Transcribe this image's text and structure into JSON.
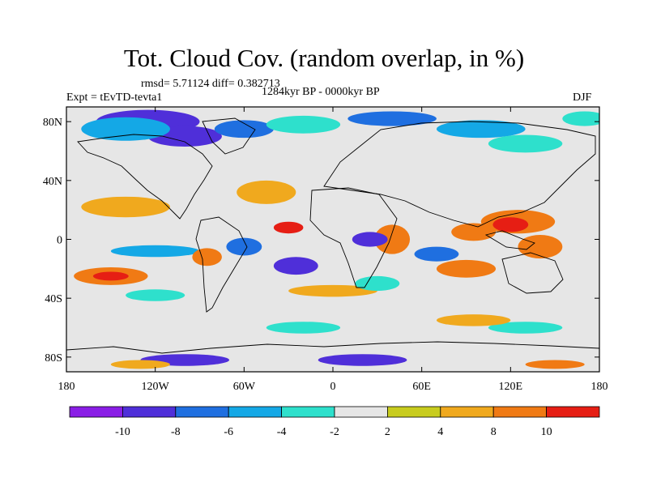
{
  "title": "Tot. Cloud Cov. (random overlap, in %)",
  "stats": "rmsd= 5.71124 diff= 0.382713",
  "experiment": "Expt = tEvTD-tevta1",
  "period": "1284kyr BP - 0000kyr BP",
  "season": "DJF",
  "chart_data": {
    "type": "heatmap",
    "x_axis": {
      "range": [
        -180,
        180
      ],
      "ticks": [
        -180,
        -120,
        -60,
        0,
        60,
        120,
        180
      ],
      "tick_labels": [
        "180",
        "120W",
        "60W",
        "0",
        "60E",
        "120E",
        "180"
      ]
    },
    "y_axis": {
      "range": [
        -90,
        90
      ],
      "ticks": [
        80,
        40,
        0,
        -40,
        -80
      ],
      "tick_labels": [
        "80N",
        "40N",
        "0",
        "40S",
        "80S"
      ]
    },
    "colorbar": {
      "levels": [
        -10,
        -8,
        -6,
        -4,
        -2,
        2,
        4,
        8,
        10
      ],
      "tick_labels": [
        "-10",
        "-8",
        "-6",
        "-4",
        "-2",
        "2",
        "4",
        "8",
        "10"
      ],
      "colors": [
        "#8a1ee6",
        "#4f2fd9",
        "#1f6fe0",
        "#14a8e6",
        "#2ee0cc",
        "#e6e6e6",
        "#c8cc1e",
        "#f0a91e",
        "#f07a14",
        "#e61e14"
      ]
    },
    "features": [
      {
        "label": "-10",
        "lon": -125,
        "lat": 80,
        "dlon": 35,
        "dlat": 8
      },
      {
        "label": "-10",
        "lon": -100,
        "lat": 70,
        "dlon": 25,
        "dlat": 7
      },
      {
        "label": "-8",
        "lon": -60,
        "lat": 75,
        "dlon": 20,
        "dlat": 6
      },
      {
        "label": "-6",
        "lon": -140,
        "lat": 75,
        "dlon": 30,
        "dlat": 8
      },
      {
        "label": "-4",
        "lon": -20,
        "lat": 78,
        "dlon": 25,
        "dlat": 6
      },
      {
        "label": "-8",
        "lon": 40,
        "lat": 82,
        "dlon": 30,
        "dlat": 5
      },
      {
        "label": "-6",
        "lon": 100,
        "lat": 75,
        "dlon": 30,
        "dlat": 6
      },
      {
        "label": "-4",
        "lon": 130,
        "lat": 65,
        "dlon": 25,
        "dlat": 6
      },
      {
        "label": "-4",
        "lon": 170,
        "lat": 82,
        "dlon": 15,
        "dlat": 5
      },
      {
        "label": "4",
        "lon": -140,
        "lat": 22,
        "dlon": 30,
        "dlat": 7
      },
      {
        "label": "4",
        "lon": -45,
        "lat": 32,
        "dlon": 20,
        "dlat": 8
      },
      {
        "label": "8",
        "lon": 125,
        "lat": 12,
        "dlon": 25,
        "dlat": 8
      },
      {
        "label": "10",
        "lon": 120,
        "lat": 10,
        "dlon": 12,
        "dlat": 5
      },
      {
        "label": "8",
        "lon": 95,
        "lat": 5,
        "dlon": 15,
        "dlat": 6
      },
      {
        "label": "8",
        "lon": 40,
        "lat": 0,
        "dlon": 12,
        "dlat": 10
      },
      {
        "label": "10",
        "lon": -30,
        "lat": 8,
        "dlon": 10,
        "dlat": 4
      },
      {
        "label": "-10",
        "lon": 25,
        "lat": 0,
        "dlon": 12,
        "dlat": 5
      },
      {
        "label": "-8",
        "lon": -60,
        "lat": -5,
        "dlon": 12,
        "dlat": 6
      },
      {
        "label": "-6",
        "lon": -120,
        "lat": -8,
        "dlon": 30,
        "dlat": 4
      },
      {
        "label": "-10",
        "lon": -25,
        "lat": -18,
        "dlon": 15,
        "dlat": 6
      },
      {
        "label": "-8",
        "lon": 70,
        "lat": -10,
        "dlon": 15,
        "dlat": 5
      },
      {
        "label": "8",
        "lon": -150,
        "lat": -25,
        "dlon": 25,
        "dlat": 6
      },
      {
        "label": "10",
        "lon": -150,
        "lat": -25,
        "dlon": 12,
        "dlat": 3
      },
      {
        "label": "8",
        "lon": -85,
        "lat": -12,
        "dlon": 10,
        "dlat": 6
      },
      {
        "label": "8",
        "lon": 90,
        "lat": -20,
        "dlon": 20,
        "dlat": 6
      },
      {
        "label": "8",
        "lon": 140,
        "lat": -5,
        "dlon": 15,
        "dlat": 8
      },
      {
        "label": "4",
        "lon": 0,
        "lat": -35,
        "dlon": 30,
        "dlat": 4
      },
      {
        "label": "-4",
        "lon": -120,
        "lat": -38,
        "dlon": 20,
        "dlat": 4
      },
      {
        "label": "-4",
        "lon": 30,
        "lat": -30,
        "dlon": 15,
        "dlat": 5
      },
      {
        "label": "-4",
        "lon": -20,
        "lat": -60,
        "dlon": 25,
        "dlat": 4
      },
      {
        "label": "-4",
        "lon": 130,
        "lat": -60,
        "dlon": 25,
        "dlat": 4
      },
      {
        "label": "4",
        "lon": 95,
        "lat": -55,
        "dlon": 25,
        "dlat": 4
      },
      {
        "label": "-10",
        "lon": -100,
        "lat": -82,
        "dlon": 30,
        "dlat": 4
      },
      {
        "label": "-10",
        "lon": 20,
        "lat": -82,
        "dlon": 30,
        "dlat": 4
      },
      {
        "label": "4",
        "lon": -130,
        "lat": -85,
        "dlon": 20,
        "dlat": 3
      },
      {
        "label": "8",
        "lon": 150,
        "lat": -85,
        "dlon": 20,
        "dlat": 3
      }
    ]
  }
}
